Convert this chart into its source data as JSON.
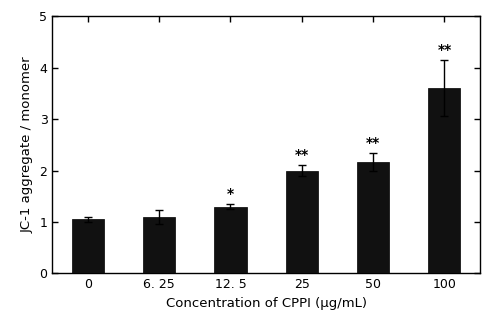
{
  "categories": [
    "0",
    "6. 25",
    "12. 5",
    "25",
    "50",
    "100"
  ],
  "values": [
    1.05,
    1.1,
    1.3,
    2.0,
    2.17,
    3.6
  ],
  "errors": [
    0.05,
    0.13,
    0.05,
    0.1,
    0.17,
    0.55
  ],
  "bar_color": "#111111",
  "bar_width": 0.45,
  "ylim": [
    0,
    5
  ],
  "yticks": [
    0,
    1,
    2,
    3,
    4,
    5
  ],
  "ylabel": "JC-1 aggregate / monomer",
  "xlabel": "Concentration of CPPI (μg/mL)",
  "significance": [
    "",
    "",
    "*",
    "**",
    "**",
    "**"
  ],
  "sig_fontsize": 10,
  "ylabel_fontsize": 9.5,
  "xlabel_fontsize": 9.5,
  "tick_fontsize": 9,
  "background_color": "#ffffff",
  "capsize": 3,
  "elinewidth": 1.0,
  "ecapthick": 1.0
}
